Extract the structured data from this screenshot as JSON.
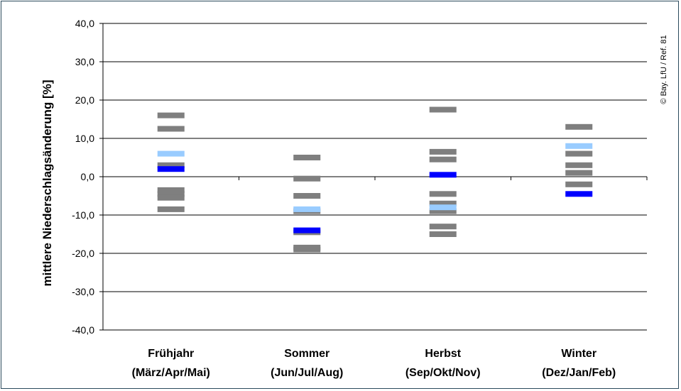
{
  "chart_data": {
    "type": "scatter",
    "ylabel": "mittlere Niederschlagsänderung [%]",
    "ylim": [
      -40,
      40
    ],
    "ytick_labels": [
      "-40,0",
      "-30,0",
      "-20,0",
      "-10,0",
      "0,0",
      "10,0",
      "20,0",
      "30,0",
      "40,0"
    ],
    "grid": true,
    "categories": [
      {
        "line1": "Frühjahr",
        "line2": "(März/Apr/Mai)"
      },
      {
        "line1": "Sommer",
        "line2": "(Jun/Jul/Aug)"
      },
      {
        "line1": "Herbst",
        "line2": "(Sep/Okt/Nov)"
      },
      {
        "line1": "Winter",
        "line2": "(Dez/Jan/Feb)"
      }
    ],
    "marks": [
      {
        "category": 0,
        "color": "gray",
        "values": [
          16,
          12.5,
          3,
          -3.5,
          -4.5,
          -5.5,
          -8.5
        ]
      },
      {
        "category": 0,
        "color": "lightblue",
        "values": [
          6
        ]
      },
      {
        "category": 0,
        "color": "blue",
        "values": [
          2
        ]
      },
      {
        "category": 1,
        "color": "gray",
        "values": [
          5,
          -0.5,
          -5,
          -9,
          -14.5,
          -18.5,
          -19
        ]
      },
      {
        "category": 1,
        "color": "lightblue",
        "values": [
          -8.5
        ]
      },
      {
        "category": 1,
        "color": "blue",
        "values": [
          -14
        ]
      },
      {
        "category": 2,
        "color": "gray",
        "values": [
          17.5,
          6.5,
          4.5,
          -4.5,
          -7,
          -9,
          -13,
          -15
        ]
      },
      {
        "category": 2,
        "color": "lightblue",
        "values": [
          -8
        ]
      },
      {
        "category": 2,
        "color": "blue",
        "values": [
          0.5
        ]
      },
      {
        "category": 3,
        "color": "gray",
        "values": [
          13,
          6,
          3,
          1,
          -2
        ]
      },
      {
        "category": 3,
        "color": "lightblue",
        "values": [
          8
        ]
      },
      {
        "category": 3,
        "color": "blue",
        "values": [
          -4.5
        ]
      }
    ],
    "colors": {
      "gray": "#7f7f7f",
      "lightblue": "#99ccff",
      "blue": "#0000ff",
      "grid": "#000000"
    }
  },
  "copyright": "© Bay. LfU / Ref. 81"
}
